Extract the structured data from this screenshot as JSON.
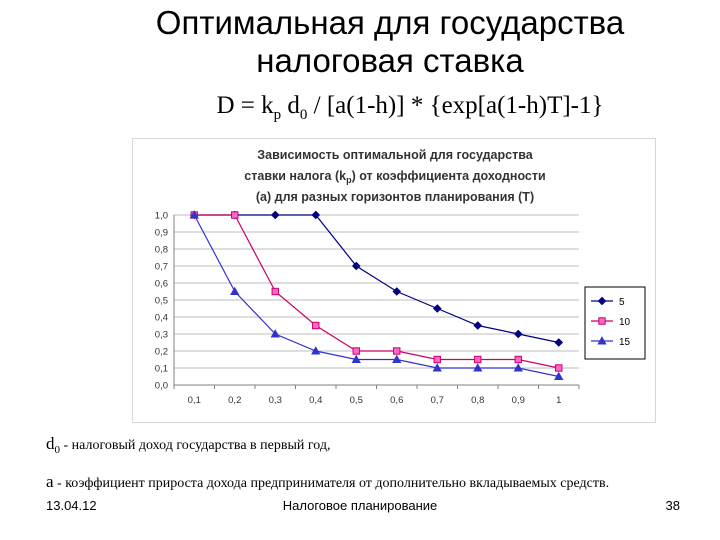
{
  "slide": {
    "title_line1": "Оптимальная для государства",
    "title_line2": "налоговая ставка",
    "formula": {
      "lhs": "D = k",
      "sub1": "p",
      "mid": " d",
      "sub2": "0",
      "rhs": " / [a(1-h)] * {exp[a(1-h)T]-1}"
    },
    "note1": {
      "symbol": "d",
      "sub": "0",
      "text": " - налоговый доход государства в первый год,"
    },
    "note2": {
      "symbol": "a",
      "text": " - коэффициент прироста дохода предпринимателя от дополнительно вкладываемых средств."
    },
    "footer": {
      "date": "13.04.12",
      "center": "Налоговое планирование",
      "page": "38"
    }
  },
  "chart_data": {
    "type": "line",
    "title_lines": [
      "Зависимость оптимальной для государства",
      "ставки налога (k",
      "р",
      ") от коэффициента доходности",
      "(а) для разных горизонтов планирования (Т)"
    ],
    "x": [
      "0,1",
      "0,2",
      "0,3",
      "0,4",
      "0,5",
      "0,6",
      "0,7",
      "0,8",
      "0,9",
      "1"
    ],
    "y_ticks": [
      "0,0",
      "0,1",
      "0,2",
      "0,3",
      "0,4",
      "0,5",
      "0,6",
      "0,7",
      "0,8",
      "0,9",
      "1,0"
    ],
    "ylim": [
      0,
      1
    ],
    "grid": "horizontal",
    "legend_position": "right",
    "series": [
      {
        "name": "5",
        "color": "#000080",
        "marker": "diamond",
        "values": [
          1.0,
          1.0,
          1.0,
          1.0,
          0.7,
          0.55,
          0.45,
          0.35,
          0.3,
          0.25
        ]
      },
      {
        "name": "10",
        "color": "#cc0066",
        "marker": "square",
        "values": [
          1.0,
          1.0,
          0.55,
          0.35,
          0.2,
          0.2,
          0.15,
          0.15,
          0.15,
          0.1
        ]
      },
      {
        "name": "15",
        "color": "#3333cc",
        "marker": "triangle",
        "values": [
          1.0,
          0.55,
          0.3,
          0.2,
          0.15,
          0.15,
          0.1,
          0.1,
          0.1,
          0.05
        ]
      }
    ]
  }
}
